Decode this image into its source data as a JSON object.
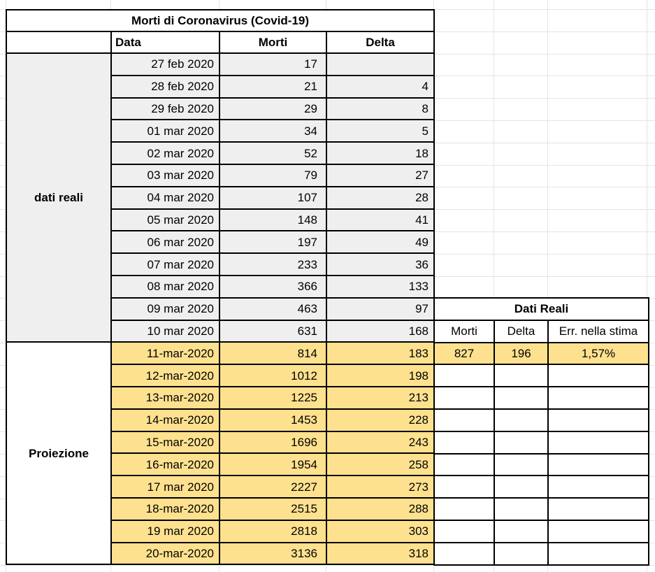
{
  "title": "Morti di Coronavirus (Covid-19)",
  "main_table": {
    "column_headers": {
      "label": "",
      "data": "Data",
      "morti": "Morti",
      "delta": "Delta"
    },
    "sections": [
      {
        "label": "dati reali",
        "rows": [
          {
            "date": "27 feb 2020",
            "morti": "17",
            "delta": ""
          },
          {
            "date": "28 feb 2020",
            "morti": "21",
            "delta": "4"
          },
          {
            "date": "29 feb 2020",
            "morti": "29",
            "delta": "8"
          },
          {
            "date": "01 mar 2020",
            "morti": "34",
            "delta": "5"
          },
          {
            "date": "02 mar 2020",
            "morti": "52",
            "delta": "18"
          },
          {
            "date": "03 mar 2020",
            "morti": "79",
            "delta": "27"
          },
          {
            "date": "04 mar 2020",
            "morti": "107",
            "delta": "28"
          },
          {
            "date": "05 mar 2020",
            "morti": "148",
            "delta": "41"
          },
          {
            "date": "06 mar 2020",
            "morti": "197",
            "delta": "49"
          },
          {
            "date": "07 mar 2020",
            "morti": "233",
            "delta": "36"
          },
          {
            "date": "08 mar 2020",
            "morti": "366",
            "delta": "133"
          },
          {
            "date": "09 mar 2020",
            "morti": "463",
            "delta": "97"
          },
          {
            "date": "10 mar 2020",
            "morti": "631",
            "delta": "168"
          }
        ]
      },
      {
        "label": "Proiezione",
        "rows": [
          {
            "date": "11-mar-2020",
            "morti": "814",
            "delta": "183"
          },
          {
            "date": "12-mar-2020",
            "morti": "1012",
            "delta": "198"
          },
          {
            "date": "13-mar-2020",
            "morti": "1225",
            "delta": "213"
          },
          {
            "date": "14-mar-2020",
            "morti": "1453",
            "delta": "228"
          },
          {
            "date": "15-mar-2020",
            "morti": "1696",
            "delta": "243"
          },
          {
            "date": "16-mar-2020",
            "morti": "1954",
            "delta": "258"
          },
          {
            "date": "17 mar 2020",
            "morti": "2227",
            "delta": "273"
          },
          {
            "date": "18-mar-2020",
            "morti": "2515",
            "delta": "288"
          },
          {
            "date": "19 mar 2020",
            "morti": "2818",
            "delta": "303"
          },
          {
            "date": "20-mar-2020",
            "morti": "3136",
            "delta": "318"
          }
        ]
      }
    ]
  },
  "side_table": {
    "title": "Dati Reali",
    "column_headers": [
      "Morti",
      "Delta",
      "Err. nella stima"
    ],
    "rows": [
      [
        "827",
        "196",
        "1,57%"
      ],
      [
        "",
        "",
        ""
      ],
      [
        "",
        "",
        ""
      ],
      [
        "",
        "",
        ""
      ],
      [
        "",
        "",
        ""
      ],
      [
        "",
        "",
        ""
      ],
      [
        "",
        "",
        ""
      ],
      [
        "",
        "",
        ""
      ],
      [
        "",
        "",
        ""
      ],
      [
        "",
        "",
        ""
      ]
    ]
  },
  "colors": {
    "real_row_fill": "#efefef",
    "projection_fill": "#fee18f",
    "table_border": "#000000",
    "background_grid_line": "#e4e4e4",
    "cell_background": "#ffffff"
  }
}
